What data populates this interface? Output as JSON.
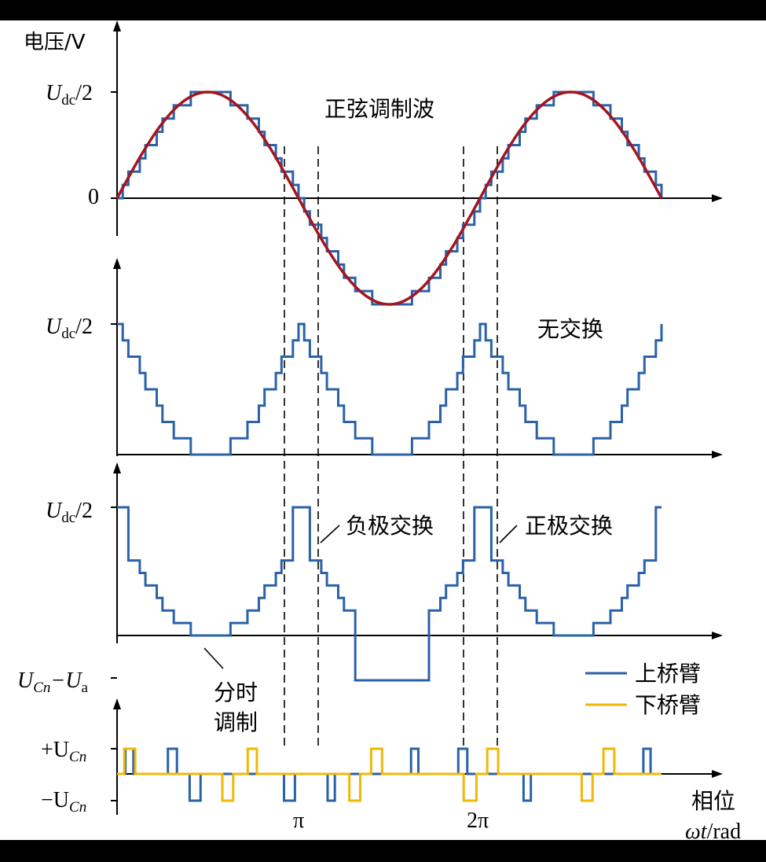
{
  "chart_data": {
    "type": "line",
    "x_axis": {
      "label_cjk": "相位",
      "label_unit": "ωt/rad",
      "tick_labels": [
        "π",
        "2π"
      ],
      "dashed_marks": [
        "π ±",
        "2π ±"
      ]
    },
    "legend": [
      {
        "name": "上桥臂",
        "color": "#2a62a8"
      },
      {
        "name": "下桥臂",
        "color": "#f2b705"
      }
    ],
    "panels": [
      {
        "id": "modulation",
        "y_axis_title": "电压/V",
        "y_tick_labels": [
          "U_dc/2",
          "0"
        ],
        "annotation": "正弦调制波",
        "series": [
          {
            "name": "正弦调制波",
            "color": "#a31620",
            "function": "sin(ωt)",
            "x_range_cycles": [
              0,
              1.5
            ]
          },
          {
            "name": "上桥臂",
            "color": "#2a62a8",
            "levels": 16,
            "note": "staircase approximation"
          }
        ]
      },
      {
        "id": "no-swap",
        "y_tick_labels": [
          "U_dc/2"
        ],
        "annotation": "无交换",
        "series": [
          {
            "name": "上桥臂",
            "color": "#2a62a8"
          }
        ]
      },
      {
        "id": "swap",
        "y_tick_labels": [
          "U_dc/2",
          "U_Cn−U_a"
        ],
        "annotations": [
          "负极交换",
          "正极交换",
          "分时调制"
        ],
        "series": [
          {
            "name": "上桥臂",
            "color": "#2a62a8"
          }
        ]
      },
      {
        "id": "pulses",
        "y_tick_labels": [
          "+U_Cn",
          "−U_Cn"
        ],
        "series": [
          {
            "name": "上桥臂",
            "color": "#2a62a8"
          },
          {
            "name": "下桥臂",
            "color": "#f2b705"
          }
        ]
      }
    ]
  },
  "labels": {
    "y_title": "电压/V",
    "p1_top": "U",
    "p1_top_sub": "dc",
    "p1_top_tail": "/2",
    "p1_zero": "0",
    "p1_note": "正弦调制波",
    "p2_top": "U",
    "p2_top_sub": "dc",
    "p2_top_tail": "/2",
    "p2_note": "无交换",
    "p3_top": "U",
    "p3_top_sub": "dc",
    "p3_top_tail": "/2",
    "p3_bot_a": "U",
    "p3_bot_a_sub": "Cn",
    "p3_bot_mid": "−U",
    "p3_bot_b_sub": "a",
    "neg_swap": "负极交换",
    "pos_swap": "正极交换",
    "tdm1": "分时",
    "tdm2": "调制",
    "p4_plus": "+U",
    "p4_plus_sub": "Cn",
    "p4_minus": "−U",
    "p4_minus_sub": "Cn",
    "pi": "π",
    "two_pi": "2π",
    "phase": "相位",
    "unit_wt": "ωt",
    "unit_rad": "/rad",
    "legend_upper": "上桥臂",
    "legend_lower": "下桥臂"
  }
}
